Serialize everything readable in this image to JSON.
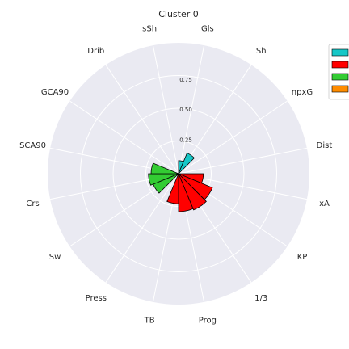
{
  "chart_data": {
    "type": "polar-bar",
    "title": "Cluster 0",
    "categories": [
      "Gls",
      "Sh",
      "npxG",
      "Dist",
      "xA",
      "KP",
      "1/3",
      "Prog",
      "TB",
      "Press",
      "Sw",
      "Crs",
      "SCA90",
      "GCA90",
      "Drib",
      "sSh"
    ],
    "radial_ticks": [
      "0.25",
      "0.50",
      "0.75"
    ],
    "rlim": [
      0,
      1.0
    ],
    "grid": true,
    "legend_position": "top-right",
    "series": [
      {
        "color": "#17c7c7",
        "values": [
          0.1,
          0.17,
          0.0,
          0.0,
          0.0,
          0.0,
          0.0,
          0.0,
          0.0,
          0.0,
          0.0,
          0.0,
          0.0,
          0.0,
          0.0,
          0.0
        ]
      },
      {
        "color": "#ff0000",
        "values": [
          0.0,
          0.0,
          0.0,
          0.0,
          0.19,
          0.28,
          0.3,
          0.29,
          0.23,
          0.0,
          0.0,
          0.0,
          0.0,
          0.0,
          0.0,
          0.0
        ]
      },
      {
        "color": "#33cc33",
        "values": [
          0.0,
          0.0,
          0.0,
          0.0,
          0.0,
          0.0,
          0.0,
          0.0,
          0.0,
          0.0,
          0.21,
          0.23,
          0.21,
          0.0,
          0.0,
          0.0
        ]
      },
      {
        "color": "#ff8c00",
        "values": [
          0.0,
          0.0,
          0.0,
          0.0,
          0.0,
          0.0,
          0.0,
          0.0,
          0.0,
          0.0,
          0.0,
          0.0,
          0.0,
          0.0,
          0.0,
          0.0
        ]
      }
    ]
  }
}
